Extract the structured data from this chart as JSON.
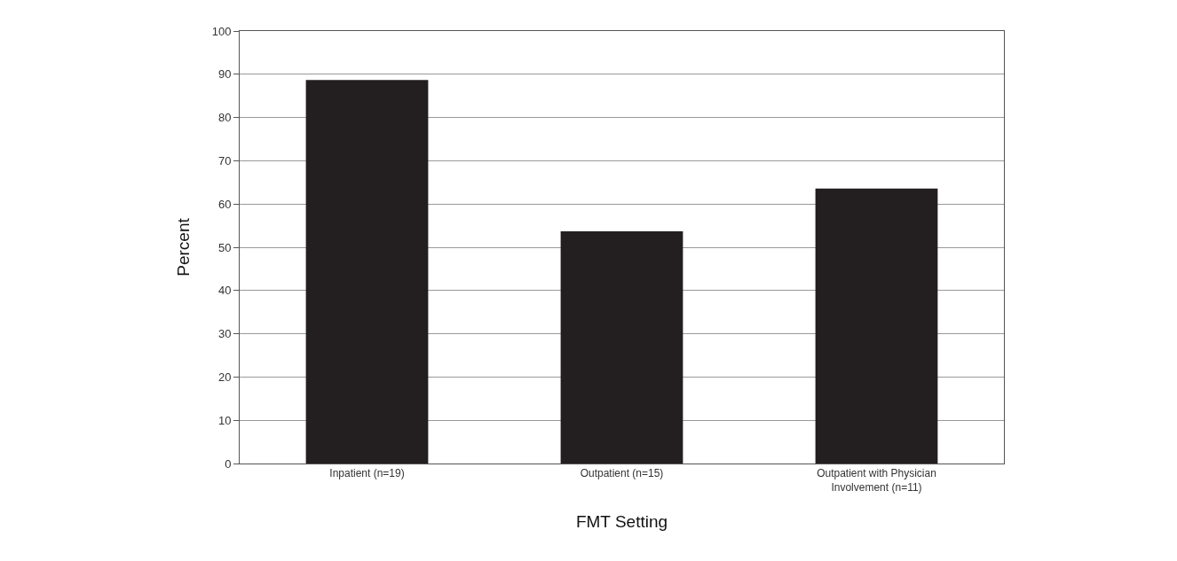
{
  "chart_data": {
    "type": "bar",
    "xlabel": "FMT Setting",
    "ylabel": "Percent",
    "categories": [
      "Inpatient (n=19)",
      "Outpatient (n=15)",
      "Outpatient with Physician\nInvolvement (n=11)"
    ],
    "values": [
      88.7,
      53.7,
      63.6
    ],
    "color": "#231f20",
    "ylim": [
      0,
      100
    ],
    "yticks": [
      0,
      10,
      20,
      30,
      40,
      50,
      60,
      70,
      80,
      90,
      100
    ],
    "grid": "y"
  }
}
